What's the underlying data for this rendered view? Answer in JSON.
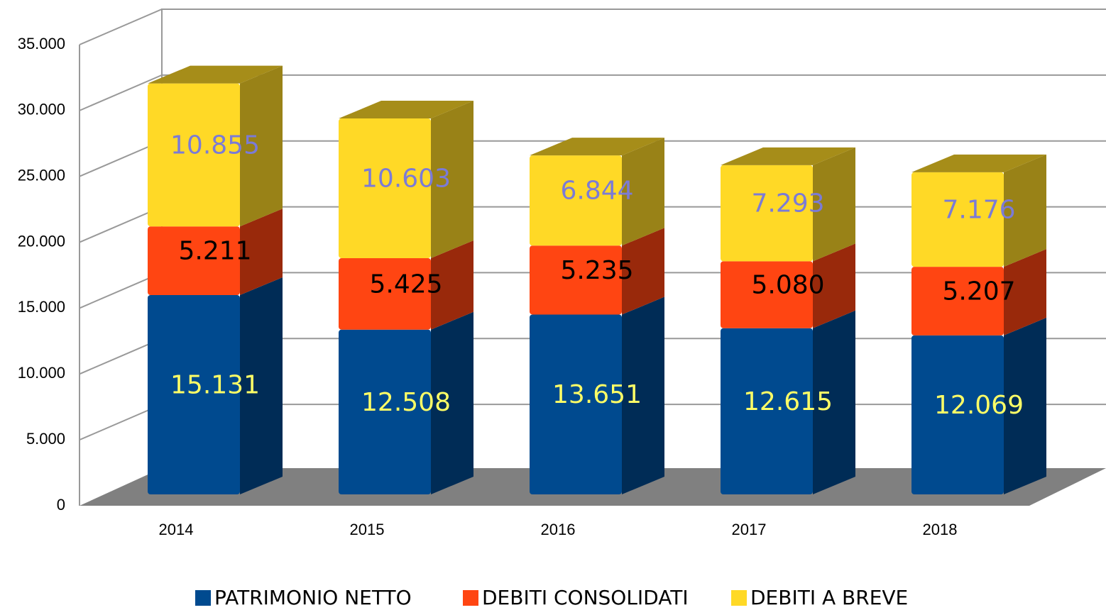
{
  "chart_data": {
    "type": "bar3d_stacked",
    "categories": [
      "2014",
      "2015",
      "2016",
      "2017",
      "2018"
    ],
    "series": [
      {
        "name": "PATRIMONIO NETTO",
        "color": "#004a8f",
        "label_color": "#ffff66",
        "values": [
          15131,
          12508,
          13651,
          12615,
          12069
        ],
        "value_labels": [
          "15.131",
          "12.508",
          "13.651",
          "12.615",
          "12.069"
        ]
      },
      {
        "name": "DEBITI CONSOLIDATI",
        "color": "#ff4512",
        "label_color": "#000000",
        "values": [
          5211,
          5425,
          5235,
          5080,
          5207
        ],
        "value_labels": [
          "5.211",
          "5.425",
          "5.235",
          "5.080",
          "5.207"
        ]
      },
      {
        "name": "DEBITI A BREVE",
        "color": "#ffd926",
        "label_color": "#7b7bd6",
        "values": [
          10855,
          10603,
          6844,
          7293,
          7176
        ],
        "value_labels": [
          "10.855",
          "10.603",
          "6.844",
          "7.293",
          "7.176"
        ]
      }
    ],
    "ylim": [
      0,
      35000
    ],
    "yticks": [
      0,
      {
        "value": 5000,
        "label": "5.000"
      },
      {
        "value": 10000,
        "label": "10.000"
      },
      {
        "value": 15000,
        "label": "15.000"
      },
      {
        "value": 20000,
        "label": "20.000"
      },
      {
        "value": 25000,
        "label": "25.000"
      },
      {
        "value": 30000,
        "label": "30.000"
      },
      {
        "value": 35000,
        "label": "35.000"
      }
    ],
    "grid": true,
    "legend": "bottom"
  }
}
